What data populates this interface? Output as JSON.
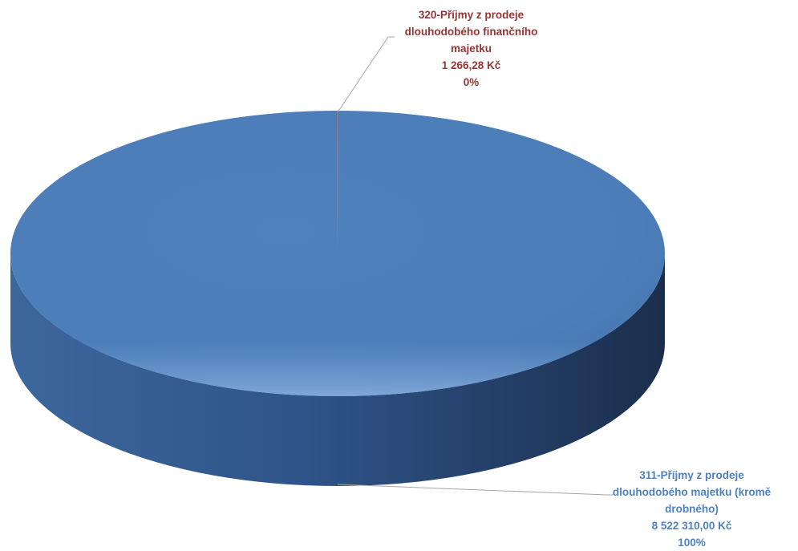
{
  "chart_data": {
    "type": "pie",
    "style": "3d",
    "title": "",
    "slices": [
      {
        "label_lines": [
          "311-Příjmy z prodeje",
          "dlouhodobého  majetku (kromě",
          "drobného)"
        ],
        "value": 8522310.0,
        "value_label": "8 522 310,00 Kč",
        "percent_label": "100%",
        "color": "#4F81BD",
        "label_color": "#4F81BD"
      },
      {
        "label_lines": [
          "320-Příjmy z prodeje",
          "dlouhodobého  finančního",
          "majetku"
        ],
        "value": 1266.28,
        "value_label": "1 266,28 Kč",
        "percent_label": "0%",
        "color": "#C0504D",
        "label_color": "#943634"
      }
    ],
    "legend": "none",
    "grid": false
  }
}
